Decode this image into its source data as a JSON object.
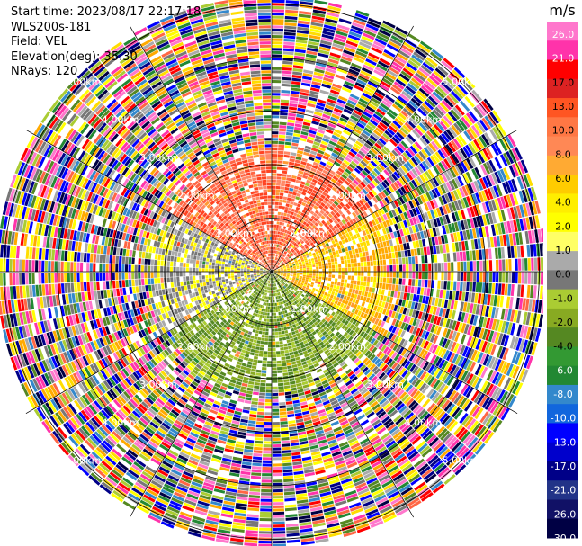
{
  "header": {
    "start_time": "Start time: 2023/08/17 22:17:18",
    "instrument": "WLS200s-181",
    "field": "Field: VEL",
    "elevation": "Elevation(deg): 35.30",
    "nrays": "NRays: 120"
  },
  "chart_data": {
    "type": "heatmap",
    "projection": "polar-ppi",
    "field": "VEL",
    "units": "m/s",
    "n_rays": 120,
    "range_rings_km": [
      1,
      2,
      3,
      4,
      5
    ],
    "range_labels": [
      "1.00km",
      "2.00km",
      "3.00km",
      "4.00km",
      "5.00km"
    ],
    "radial_lines_deg": [
      0,
      30,
      60,
      90,
      120,
      150,
      180,
      210,
      240,
      270,
      300,
      330
    ],
    "colorbar": {
      "title": "m/s",
      "ticks": [
        "26.0",
        "21.0",
        "17.0",
        "13.0",
        "10.0",
        "8.0",
        "6.0",
        "4.0",
        "2.0",
        "1.0",
        "0.0",
        "-1.0",
        "-2.0",
        "-4.0",
        "-6.0",
        "-8.0",
        "-10.0",
        "-13.0",
        "-17.0",
        "-21.0",
        "-26.0",
        "-30.0"
      ],
      "colors": [
        "#ff77cc",
        "#ff33aa",
        "#ff0000",
        "#dd2222",
        "#ff5522",
        "#ff7744",
        "#ff8855",
        "#ffaa33",
        "#ffcc00",
        "#ffee00",
        "#ffff00",
        "#ffff66",
        "#aaaaaa",
        "#777777",
        "#aacc33",
        "#88aa22",
        "#558822",
        "#339933",
        "#228833",
        "#3388cc",
        "#1166dd",
        "#0000ff",
        "#0000cc",
        "#000088",
        "#223388",
        "#111166",
        "#000044"
      ]
    },
    "approx_field": [
      {
        "azimuth_deg": [
          300,
          60
        ],
        "range_km": [
          0,
          2.3
        ],
        "velocity": [
          4,
          13
        ]
      },
      {
        "azimuth_deg": [
          240,
          300
        ],
        "range_km": [
          0,
          2.3
        ],
        "velocity": [
          -2,
          1
        ]
      },
      {
        "azimuth_deg": [
          60,
          120
        ],
        "range_km": [
          0,
          2.3
        ],
        "velocity": [
          1,
          4
        ]
      },
      {
        "azimuth_deg": [
          120,
          240
        ],
        "range_km": [
          0,
          2.3
        ],
        "velocity": [
          -8,
          -4
        ]
      },
      {
        "azimuth_deg": [
          0,
          360
        ],
        "range_km": [
          2.3,
          5.1
        ],
        "velocity": "noise"
      }
    ]
  }
}
